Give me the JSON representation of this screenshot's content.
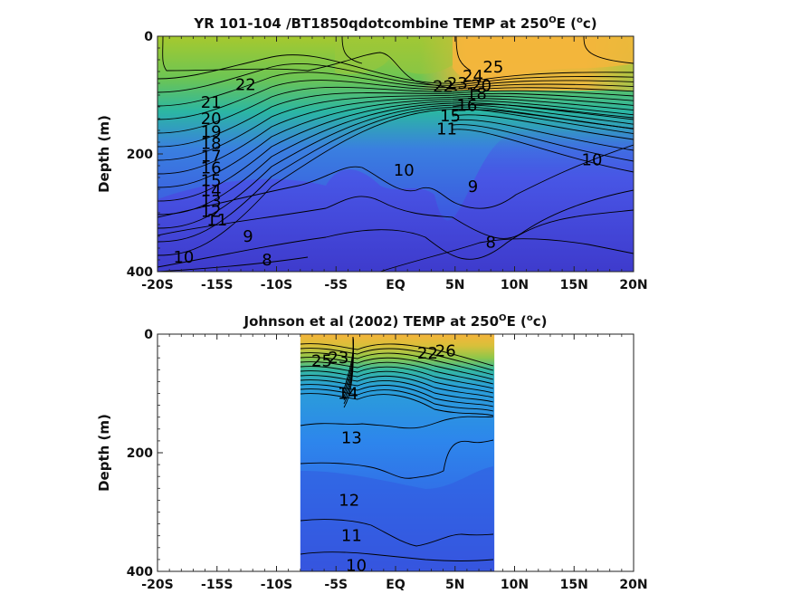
{
  "chart_data": [
    {
      "type": "contour",
      "title_main": "YR 101-104 /BT1850qdotcombine TEMP at 250",
      "title_sup1": "O",
      "title_mid": "E (",
      "title_sup2": "o",
      "title_end": "c)",
      "ylabel": "Depth (m)",
      "xlim": [
        -20,
        20
      ],
      "ylim": [
        0,
        400
      ],
      "x_ticks": [
        "-20S",
        "-15S",
        "-10S",
        "-5S",
        "EQ",
        "5N",
        "10N",
        "15N",
        "20N"
      ],
      "y_ticks": [
        "0",
        "200",
        "400"
      ],
      "data_extent": [
        -20,
        20
      ],
      "contour_labels": [
        {
          "text": "25",
          "x": 8.2,
          "y": 52
        },
        {
          "text": "24",
          "x": 6.5,
          "y": 68
        },
        {
          "text": "23",
          "x": 5.2,
          "y": 80
        },
        {
          "text": "22",
          "x": 4.0,
          "y": 85
        },
        {
          "text": "22",
          "x": -12.6,
          "y": 82
        },
        {
          "text": "21",
          "x": -15.5,
          "y": 112
        },
        {
          "text": "20",
          "x": -15.5,
          "y": 140
        },
        {
          "text": "19",
          "x": -15.5,
          "y": 162
        },
        {
          "text": "18",
          "x": -15.5,
          "y": 182
        },
        {
          "text": "17",
          "x": -15.5,
          "y": 204
        },
        {
          "text": "16",
          "x": -15.5,
          "y": 224
        },
        {
          "text": "15",
          "x": -15.5,
          "y": 245
        },
        {
          "text": "14",
          "x": -15.5,
          "y": 262
        },
        {
          "text": "13",
          "x": -15.5,
          "y": 280
        },
        {
          "text": "12",
          "x": -15.5,
          "y": 298
        },
        {
          "text": "11",
          "x": -15.0,
          "y": 312
        },
        {
          "text": "10",
          "x": -17.8,
          "y": 375
        },
        {
          "text": "9",
          "x": -12.4,
          "y": 340
        },
        {
          "text": "8",
          "x": -10.8,
          "y": 380
        },
        {
          "text": "10",
          "x": 0.7,
          "y": 228
        },
        {
          "text": "9",
          "x": 6.5,
          "y": 255
        },
        {
          "text": "8",
          "x": 8.0,
          "y": 350
        },
        {
          "text": "10",
          "x": 16.5,
          "y": 210
        },
        {
          "text": "11",
          "x": 4.3,
          "y": 158
        },
        {
          "text": "15",
          "x": 4.6,
          "y": 135
        },
        {
          "text": "16",
          "x": 6.0,
          "y": 118
        },
        {
          "text": "18",
          "x": 6.8,
          "y": 98
        },
        {
          "text": "20",
          "x": 7.2,
          "y": 84
        }
      ]
    },
    {
      "type": "contour",
      "title_main": "Johnson et al (2002) TEMP at 250",
      "title_sup1": "O",
      "title_mid": "E (",
      "title_sup2": "o",
      "title_end": "c)",
      "ylabel": "Depth (m)",
      "xlim": [
        -20,
        20
      ],
      "ylim": [
        0,
        400
      ],
      "x_ticks": [
        "-20S",
        "-15S",
        "-10S",
        "-5S",
        "EQ",
        "5N",
        "10N",
        "15N",
        "20N"
      ],
      "y_ticks": [
        "0",
        "200",
        "400"
      ],
      "data_extent": [
        -8,
        8.3
      ],
      "contour_labels": [
        {
          "text": "25",
          "x": -6.2,
          "y": 45
        },
        {
          "text": "23",
          "x": -4.8,
          "y": 40
        },
        {
          "text": "22",
          "x": 2.7,
          "y": 32
        },
        {
          "text": "26",
          "x": 4.2,
          "y": 28
        },
        {
          "text": "14",
          "x": -4.0,
          "y": 100
        },
        {
          "text": "13",
          "x": -3.7,
          "y": 175
        },
        {
          "text": "12",
          "x": -3.9,
          "y": 280
        },
        {
          "text": "11",
          "x": -3.7,
          "y": 340
        },
        {
          "text": "10",
          "x": -3.3,
          "y": 390
        }
      ]
    }
  ]
}
